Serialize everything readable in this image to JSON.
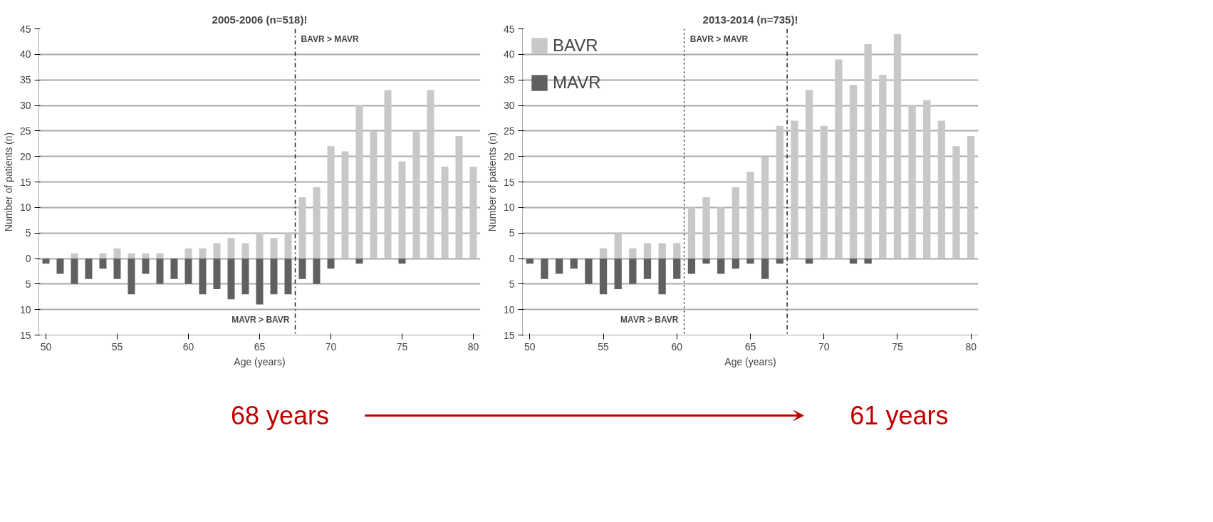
{
  "chart_data": [
    {
      "type": "bar",
      "stacked": true,
      "title": "2005-2006 (n=518)!",
      "xlabel": "Age (years)",
      "ylabel": "Number of patients (n)",
      "x": [
        50,
        51,
        52,
        53,
        54,
        55,
        56,
        57,
        58,
        59,
        60,
        61,
        62,
        63,
        64,
        65,
        66,
        67,
        68,
        69,
        70,
        71,
        72,
        73,
        74,
        75,
        76,
        77,
        78,
        79,
        80
      ],
      "series": [
        {
          "color": "#c8c8c8",
          "values": [
            0,
            0,
            1,
            0,
            1,
            2,
            1,
            1,
            1,
            0,
            2,
            2,
            3,
            4,
            3,
            5,
            4,
            5,
            12,
            14,
            22,
            21,
            30,
            25,
            33,
            19,
            25,
            33,
            18,
            24,
            18
          ]
        },
        {
          "color": "#606060",
          "values": [
            -1,
            -3,
            -5,
            -4,
            -2,
            -4,
            -7,
            -3,
            -5,
            -4,
            -5,
            -7,
            -6,
            -8,
            -7,
            -9,
            -7,
            -7,
            -4,
            -5,
            -2,
            0,
            -1,
            0,
            0,
            -1,
            0,
            0,
            0,
            0,
            0
          ]
        }
      ],
      "xlim": [
        49.5,
        80.5
      ],
      "xticks": [
        50,
        55,
        60,
        65,
        70,
        75,
        80
      ],
      "ylim": [
        -15,
        45
      ],
      "yticks": [
        {
          "value": -15,
          "label": "15"
        },
        {
          "value": -10,
          "label": "10"
        },
        {
          "value": -5,
          "label": "5"
        },
        0,
        5,
        10,
        15,
        20,
        25,
        30,
        35,
        40,
        45
      ],
      "grid": "y",
      "ref_lines": [
        {
          "axis": "x",
          "value": 67.5,
          "line_style": "dashdot"
        }
      ],
      "annotations": [
        "BAVR > MAVR",
        "MAVR > BAVR",
        "68 years"
      ]
    },
    {
      "type": "bar",
      "stacked": true,
      "title": "2013-2014 (n=735)!",
      "xlabel": "Age (years)",
      "ylabel": "Number of patients (n)",
      "x": [
        50,
        51,
        52,
        53,
        54,
        55,
        56,
        57,
        58,
        59,
        60,
        61,
        62,
        63,
        64,
        65,
        66,
        67,
        68,
        69,
        70,
        71,
        72,
        73,
        74,
        75,
        76,
        77,
        78,
        79,
        80
      ],
      "series": [
        {
          "name": "BAVR",
          "color": "#c8c8c8",
          "values": [
            0,
            0,
            0,
            0,
            0,
            2,
            5,
            2,
            3,
            3,
            3,
            10,
            12,
            10,
            14,
            17,
            20,
            26,
            27,
            33,
            26,
            39,
            34,
            42,
            36,
            44,
            30,
            31,
            27,
            22,
            24
          ]
        },
        {
          "name": "MAVR",
          "color": "#606060",
          "values": [
            -1,
            -4,
            -3,
            -2,
            -5,
            -7,
            -6,
            -5,
            -4,
            -7,
            -4,
            -3,
            -1,
            -3,
            -2,
            -1,
            -4,
            -1,
            0,
            -1,
            0,
            0,
            -1,
            -1,
            0,
            0,
            0,
            0,
            0,
            0,
            0
          ]
        }
      ],
      "xlim": [
        49.5,
        80.5
      ],
      "xticks": [
        50,
        55,
        60,
        65,
        70,
        75,
        80
      ],
      "ylim": [
        -15,
        45
      ],
      "yticks": [
        {
          "value": -15,
          "label": "15"
        },
        {
          "value": -10,
          "label": "10"
        },
        {
          "value": -5,
          "label": "5"
        },
        0,
        5,
        10,
        15,
        20,
        25,
        30,
        35,
        40,
        45
      ],
      "grid": "y",
      "legend": "top left",
      "ref_lines": [
        {
          "axis": "x",
          "value": 60.5,
          "line_style": "dotted"
        },
        {
          "axis": "x",
          "value": 67.5,
          "line_style": "dashdot"
        }
      ],
      "annotations": [
        "BAVR > MAVR",
        "MAVR > BAVR",
        "61 years"
      ]
    }
  ]
}
